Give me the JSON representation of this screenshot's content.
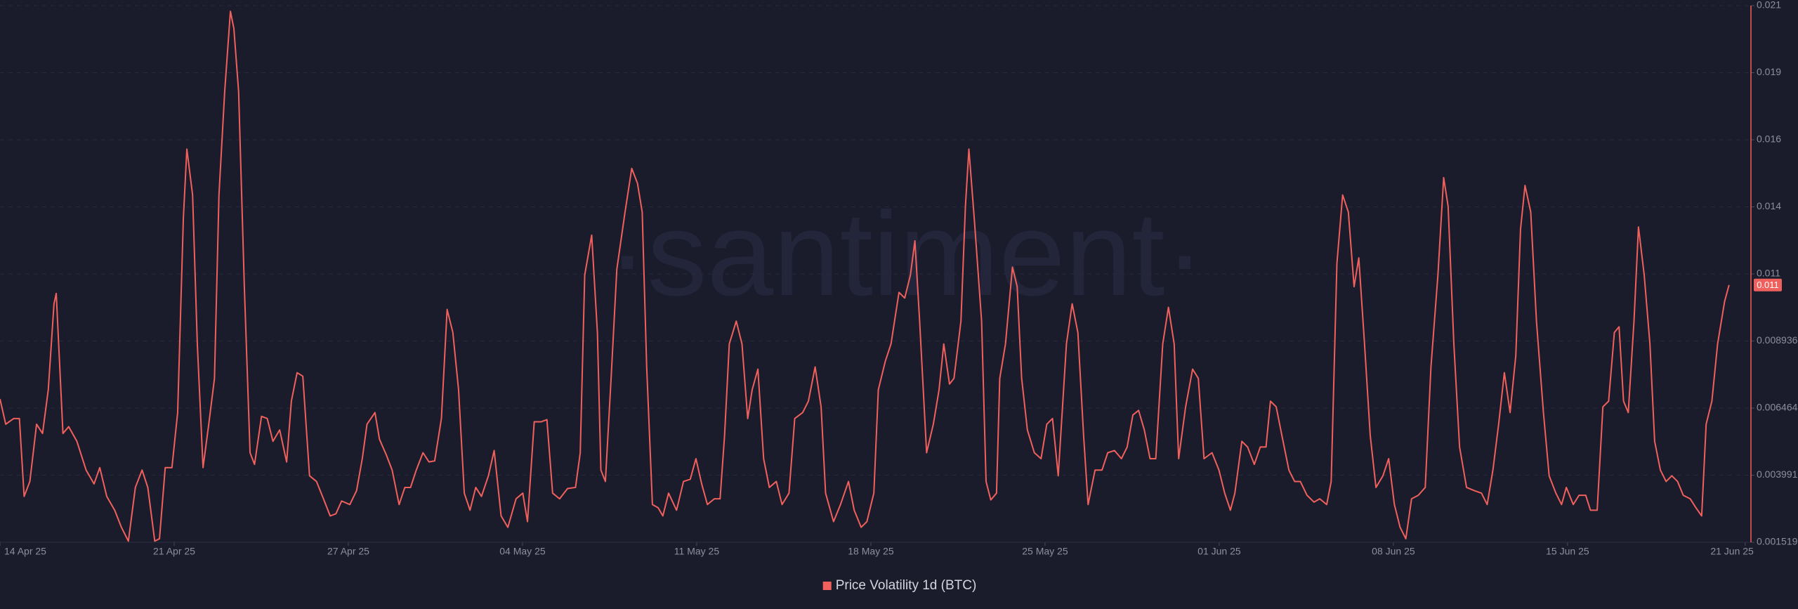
{
  "chart_data": {
    "type": "line",
    "watermark": "·santiment·",
    "x": [
      0,
      0.23,
      0.55,
      0.78,
      0.97,
      1.2,
      1.47,
      1.71,
      1.94,
      2.17,
      2.26,
      2.53,
      2.76,
      3.09,
      3.46,
      3.78,
      4.01,
      4.29,
      4.61,
      4.88,
      5.16,
      5.44,
      5.71,
      5.94,
      6.22,
      6.41,
      6.64,
      6.91,
      7.14,
      7.37,
      7.51,
      7.74,
      7.93,
      8.16,
      8.39,
      8.62,
      8.8,
      9.03,
      9.26,
      9.4,
      9.59,
      9.82,
      10.05,
      10.23,
      10.51,
      10.74,
      10.97,
      11.24,
      11.52,
      11.71,
      11.94,
      12.17,
      12.44,
      12.72,
      13,
      13.27,
      13.5,
      13.73,
      14.06,
      14.33,
      14.56,
      14.75,
      15.07,
      15.25,
      15.53,
      15.76,
      16.04,
      16.27,
      16.5,
      16.73,
      17,
      17.24,
      17.47,
      17.74,
      17.97,
      18.2,
      18.43,
      18.66,
      18.89,
      19.12,
      19.35,
      19.63,
      19.86,
      20.14,
      20.41,
      20.74,
      21.01,
      21.2,
      21.47,
      21.75,
      21.98,
      22.21,
      22.49,
      22.81,
      23.13,
      23.32,
      23.5,
      23.78,
      24.01,
      24.15,
      24.33,
      24.56,
      24.79,
      25.12,
      25.39,
      25.62,
      25.81,
      25.99,
      26.22,
      26.45,
      26.64,
      26.87,
      27.19,
      27.47,
      27.74,
      27.97,
      28.2,
      28.43,
      28.71,
      28.94,
      29.12,
      29.31,
      29.59,
      29.82,
      30.05,
      30.23,
      30.46,
      30.69,
      30.92,
      31.2,
      31.43,
      31.71,
      31.94,
      32.26,
      32.49,
      32.76,
      33,
      33.18,
      33.5,
      33.78,
      34.1,
      34.33,
      34.61,
      34.84,
      35.12,
      35.3,
      35.58,
      35.81,
      36.13,
      36.36,
      36.59,
      36.77,
      36.96,
      37.24,
      37.51,
      37.74,
      37.93,
      38.16,
      38.34,
      38.62,
      38.8,
      38.94,
      39.17,
      39.45,
      39.63,
      39.82,
      40.05,
      40.18,
      40.41,
      40.69,
      40.88,
      41.06,
      41.29,
      41.57,
      41.84,
      42.07,
      42.3,
      42.53,
      42.86,
      43.09,
      43.32,
      43.55,
      43.73,
      44.01,
      44.29,
      44.52,
      44.79,
      45.07,
      45.3,
      45.53,
      45.76,
      45.99,
      46.22,
      46.45,
      46.73,
      46.96,
      47.19,
      47.37,
      47.65,
      47.93,
      48.16,
      48.39,
      48.71,
      48.99,
      49.22,
      49.45,
      49.63,
      49.91,
      50.14,
      50.41,
      50.65,
      50.88,
      51.06,
      51.29,
      51.52,
      51.8,
      52.03,
      52.26,
      52.53,
      52.81,
      53.04,
      53.32,
      53.5,
      53.73,
      53.96,
      54.19,
      54.42,
      54.61,
      54.84,
      55.07,
      55.3,
      55.58,
      55.81,
      56.04,
      56.27,
      56.5,
      56.73,
      57,
      57.28,
      57.51,
      57.79,
      58.02,
      58.2,
      58.43,
      58.66,
      58.94,
      59.26,
      59.54,
      59.77,
      60,
      60.23,
      60.46,
      60.69,
      60.92,
      61.11,
      61.29,
      61.52,
      61.75,
      62.03,
      62.26,
      62.53,
      62.76,
      62.95,
      63.23,
      63.46,
      63.73,
      63.92,
      64.19,
      64.42,
      64.65,
      64.88,
      65.07,
      65.25,
      65.44,
      65.67,
      65.85,
      66.08,
      66.31,
      66.5,
      66.73,
      66.96,
      67.19,
      67.42,
      67.65,
      67.93,
      68.16,
      68.39,
      68.57,
      68.8,
      69.03,
      69.31,
      69.49
    ],
    "series": [
      {
        "name": "Price Volatility 1d (BTC)",
        "color": "#f0605d",
        "values": [
          0.0068,
          0.00587,
          0.00608,
          0.00608,
          0.00321,
          0.00376,
          0.00587,
          0.00553,
          0.00714,
          0.01031,
          0.01069,
          0.00553,
          0.00578,
          0.00524,
          0.00418,
          0.00367,
          0.00427,
          0.00321,
          0.0027,
          0.00207,
          0.00156,
          0.00354,
          0.00418,
          0.00354,
          0.00156,
          0.00165,
          0.00427,
          0.00427,
          0.0063,
          0.01348,
          0.01601,
          0.01432,
          0.00883,
          0.00427,
          0.00587,
          0.00756,
          0.01432,
          0.01813,
          0.02109,
          0.02045,
          0.01813,
          0.01094,
          0.00482,
          0.00439,
          0.00616,
          0.00608,
          0.00524,
          0.00566,
          0.00448,
          0.00672,
          0.00777,
          0.00764,
          0.00397,
          0.00376,
          0.00312,
          0.00249,
          0.00257,
          0.00304,
          0.00291,
          0.00342,
          0.0046,
          0.00587,
          0.0063,
          0.00532,
          0.00473,
          0.00418,
          0.00291,
          0.00354,
          0.00354,
          0.00418,
          0.00482,
          0.00448,
          0.00452,
          0.00608,
          0.0101,
          0.00925,
          0.00714,
          0.00333,
          0.0027,
          0.00354,
          0.00321,
          0.00397,
          0.0049,
          0.00249,
          0.00207,
          0.00312,
          0.00333,
          0.00228,
          0.00596,
          0.00596,
          0.00604,
          0.00333,
          0.00312,
          0.0035,
          0.00354,
          0.00482,
          0.01137,
          0.01284,
          0.00925,
          0.00418,
          0.00376,
          0.00756,
          0.01158,
          0.01369,
          0.0153,
          0.01475,
          0.01369,
          0.00798,
          0.00291,
          0.00279,
          0.00249,
          0.00333,
          0.0027,
          0.00376,
          0.00384,
          0.0046,
          0.00367,
          0.00291,
          0.00312,
          0.00312,
          0.00545,
          0.00883,
          0.00967,
          0.00883,
          0.00608,
          0.00714,
          0.0079,
          0.0046,
          0.00354,
          0.00376,
          0.00291,
          0.00333,
          0.00608,
          0.0063,
          0.00672,
          0.00798,
          0.00651,
          0.00333,
          0.00228,
          0.00291,
          0.00376,
          0.0027,
          0.00207,
          0.00228,
          0.00333,
          0.00714,
          0.00819,
          0.00883,
          0.01073,
          0.01052,
          0.01137,
          0.01263,
          0.00967,
          0.00482,
          0.00587,
          0.00714,
          0.00883,
          0.00735,
          0.00756,
          0.00967,
          0.0139,
          0.01601,
          0.01327,
          0.00967,
          0.00376,
          0.00308,
          0.00333,
          0.00756,
          0.00883,
          0.01166,
          0.01094,
          0.00756,
          0.00566,
          0.00482,
          0.0046,
          0.00587,
          0.00608,
          0.00397,
          0.00883,
          0.01031,
          0.00925,
          0.00545,
          0.00291,
          0.00418,
          0.00418,
          0.00482,
          0.0049,
          0.0046,
          0.00503,
          0.00621,
          0.00638,
          0.00566,
          0.0046,
          0.0046,
          0.00883,
          0.01018,
          0.00883,
          0.0046,
          0.00651,
          0.0079,
          0.00756,
          0.0046,
          0.00482,
          0.00418,
          0.00333,
          0.0027,
          0.00333,
          0.00524,
          0.00503,
          0.00439,
          0.00503,
          0.00503,
          0.00672,
          0.00651,
          0.00545,
          0.00418,
          0.00376,
          0.00376,
          0.00325,
          0.003,
          0.00312,
          0.00291,
          0.00376,
          0.01179,
          0.01432,
          0.01369,
          0.01094,
          0.012,
          0.00883,
          0.00545,
          0.00354,
          0.00397,
          0.0046,
          0.00291,
          0.00207,
          0.00165,
          0.00312,
          0.00325,
          0.00354,
          0.00798,
          0.01137,
          0.01496,
          0.0139,
          0.00883,
          0.00503,
          0.00354,
          0.00342,
          0.00333,
          0.00291,
          0.00418,
          0.00587,
          0.00777,
          0.0063,
          0.0084,
          0.01306,
          0.01467,
          0.01369,
          0.00967,
          0.0063,
          0.00397,
          0.00333,
          0.00291,
          0.00354,
          0.00291,
          0.00325,
          0.00325,
          0.0027,
          0.0027,
          0.00651,
          0.00672,
          0.00925,
          0.00946,
          0.00672,
          0.0063,
          0.00967,
          0.01314,
          0.01137,
          0.00883,
          0.00524,
          0.00418,
          0.00376,
          0.00397,
          0.00376,
          0.00325,
          0.00312,
          0.00279,
          0.00249,
          0.00587,
          0.00672,
          0.00883,
          0.01039,
          0.011
        ]
      }
    ],
    "xlim": [
      0,
      70.37
    ],
    "xticks": [
      {
        "value": 0,
        "label": "14 Apr 25"
      },
      {
        "value": 7,
        "label": "21 Apr 25"
      },
      {
        "value": 14,
        "label": "27 Apr 25"
      },
      {
        "value": 21,
        "label": "04 May 25"
      },
      {
        "value": 28,
        "label": "11 May 25"
      },
      {
        "value": 35,
        "label": "18 May 25"
      },
      {
        "value": 42,
        "label": "25 May 25"
      },
      {
        "value": 49,
        "label": "01 Jun 25"
      },
      {
        "value": 56,
        "label": "08 Jun 25"
      },
      {
        "value": 63,
        "label": "15 Jun 25"
      },
      {
        "value": 70.14,
        "label": "21 Jun 25"
      }
    ],
    "ylim": [
      0.001519,
      0.021299
    ],
    "yticks": [
      0.001519,
      {
        "value": 0.0039915,
        "label": "0.003991"
      },
      0.006464,
      {
        "value": 0.0089365,
        "label": "0.008936"
      },
      {
        "value": 0.011409,
        "label": "0.011"
      },
      {
        "value": 0.0138815,
        "label": "0.014"
      },
      {
        "value": 0.016354,
        "label": "0.016"
      },
      {
        "value": 0.0188265,
        "label": "0.019"
      },
      {
        "value": 0.021299,
        "label": "0.021"
      }
    ],
    "grid": true,
    "legend": "bottom"
  }
}
